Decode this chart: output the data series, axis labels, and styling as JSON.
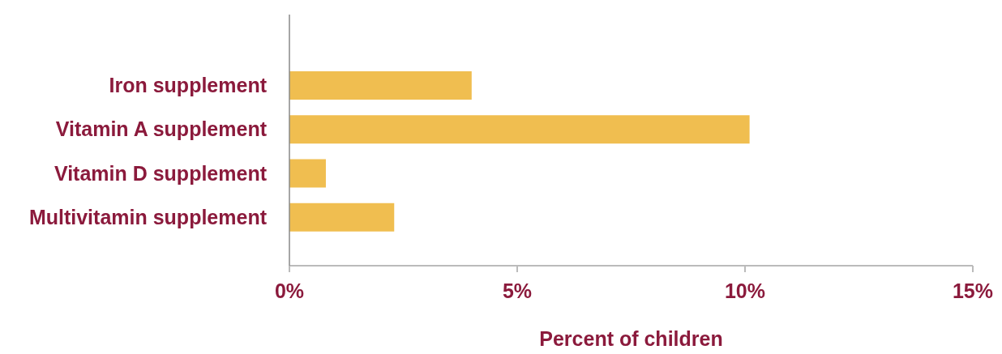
{
  "chart_data": {
    "type": "bar",
    "orientation": "horizontal",
    "categories": [
      "Iron supplement",
      "Vitamin A supplement",
      "Vitamin D supplement",
      "Multivitamin supplement"
    ],
    "values": [
      4.0,
      10.1,
      0.8,
      2.3
    ],
    "color": "#f0be50",
    "xlim": [
      0,
      15
    ],
    "xticks": [
      {
        "value": 0,
        "label": "0%"
      },
      {
        "value": 5,
        "label": "5%"
      },
      {
        "value": 10,
        "label": "10%"
      },
      {
        "value": 15,
        "label": "15%"
      }
    ],
    "xlabel": "Percent of children",
    "grid": false,
    "legend": false
  }
}
